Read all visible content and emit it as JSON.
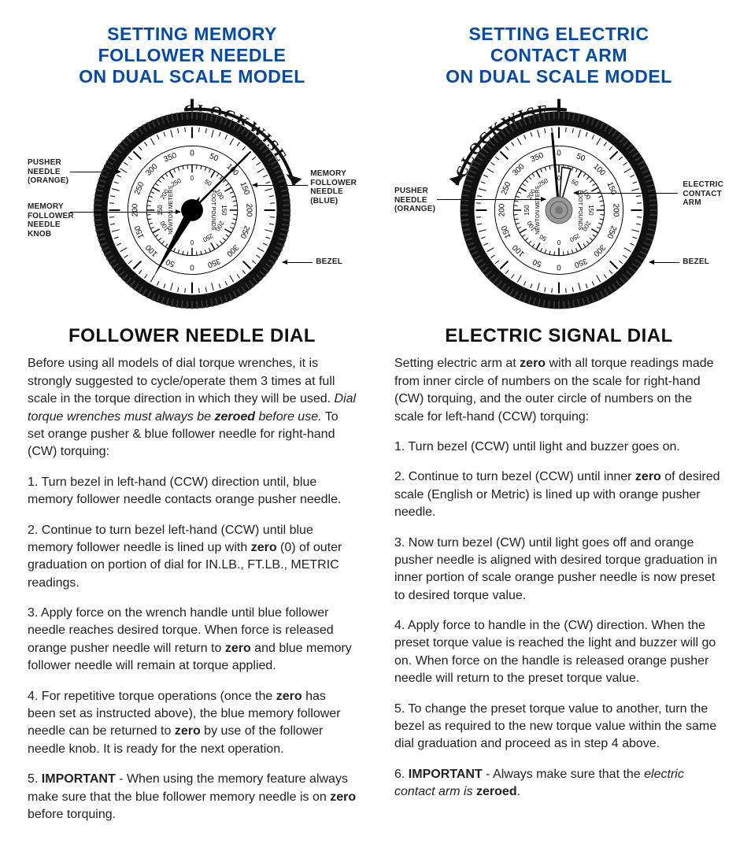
{
  "left": {
    "title_l1": "SETTING MEMORY",
    "title_l2": "FOLLOWER NEEDLE",
    "title_l3": "ON DUAL SCALE MODEL",
    "clockwise": "CLOCKWISE",
    "callouts": {
      "pusher": "PUSHER\nNEEDLE\n(ORANGE)",
      "knob": "MEMORY\nFOLLOWER\nNEEDLE\nKNOB",
      "follower": "MEMORY\nFOLLOWER\nNEEDLE\n(BLUE)",
      "bezel": "BEZEL"
    },
    "subhead": "FOLLOWER NEEDLE DIAL",
    "para_intro_a": "Before using all models of dial torque wrenches, it is strongly suggested to cycle/operate them 3 times at full scale in the torque direction in which they will be used. ",
    "para_intro_b": "Dial torque wrenches must always be ",
    "para_intro_c": "zeroed",
    "para_intro_d": " before use.",
    "para_intro_e": " To set orange pusher & blue follower needle for right-hand (CW) torquing:",
    "step1": "1. Turn bezel in left-hand (CCW) direction until, blue memory follower needle contacts orange pusher needle.",
    "step2a": "2. Continue to turn bezel left-hand (CCW) until blue memory follower needle is lined up with ",
    "step2b": "zero",
    "step2c": " (0) of outer graduation on portion of dial for IN.LB., FT.LB., METRIC readings.",
    "step3a": "3. Apply force on the wrench handle until blue follower needle reaches desired torque. When force is released orange pusher needle will return to ",
    "step3b": "zero",
    "step3c": " and blue memory follower needle will remain at torque applied.",
    "step4a": "4. For repetitive torque operations (once the ",
    "step4b": "zero",
    "step4c": " has been set as instructed above), the blue memory follower needle can be returned to ",
    "step4d": "zero",
    "step4e": " by use of the follower needle knob. It is ready for the next operation.",
    "step5a": "5. ",
    "step5b": "IMPORTANT",
    "step5c": " - When using the memory feature always make sure that the blue follower memory needle is on ",
    "step5d": "zero",
    "step5e": " before torquing."
  },
  "right": {
    "title_l1": "SETTING ELECTRIC",
    "title_l2": "CONTACT ARM",
    "title_l3": "ON DUAL SCALE MODEL",
    "clockwise": "CLOCKWISE",
    "callouts": {
      "pusher": "PUSHER\nNEEDLE\n(ORANGE)",
      "arm": "ELECTRIC\nCONTACT\nARM",
      "bezel": "BEZEL"
    },
    "subhead": "ELECTRIC SIGNAL DIAL",
    "para_intro_a": "Setting electric arm at ",
    "para_intro_b": "zero",
    "para_intro_c": " with all torque readings made from inner circle of numbers on the scale for right-hand (CW) torquing, and the outer circle of numbers on the scale for left-hand (CCW) torquing:",
    "step1": "1. Turn bezel (CCW) until light and buzzer goes on.",
    "step2a": "2. Continue to turn bezel (CCW) until inner ",
    "step2b": "zero",
    "step2c": " of desired scale (English or Metric) is lined up with orange pusher needle.",
    "step3": "3. Now turn bezel (CW) until light goes off and orange pusher needle is aligned with desired torque graduation in inner portion of scale orange pusher needle is now preset to desired torque value.",
    "step4": "4. Apply force to handle in the (CW) direction. When the preset torque value is reached the light and buzzer will go on. When force on the handle is released orange pusher needle will return to the preset torque value.",
    "step5": "5. To change the preset torque value to another, turn the bezel as required to the new torque value within the same dial graduation and proceed as in step 4 above.",
    "step6a": "6. ",
    "step6b": "IMPORTANT",
    "step6c": " - Always make sure that the ",
    "step6d": "electric contact arm is ",
    "step6e": "zeroed",
    "step6f": "."
  },
  "dial": {
    "outer_numbers": [
      "0",
      "50",
      "100",
      "150",
      "200",
      "250",
      "300",
      "350",
      "0",
      "50",
      "100",
      "150",
      "200",
      "250",
      "300",
      "350"
    ],
    "inner_numbers": [
      "0",
      "50",
      "100",
      "150",
      "200",
      "250",
      "0",
      "50",
      "100",
      "150",
      "200",
      "250"
    ],
    "unit_left": "NEWTON METERS",
    "unit_right": "FOOT POUNDS",
    "colors": {
      "bezel": "#111111",
      "face": "#ffffff",
      "tick": "#000000",
      "needle_main": "#000000",
      "hub": "#000000",
      "electric_hub": "#9a9a9a"
    },
    "left_needle_angles_deg": {
      "main": 210,
      "follower": 45
    },
    "right_needle_angles_deg": {
      "main": -5,
      "arm": 10
    }
  }
}
